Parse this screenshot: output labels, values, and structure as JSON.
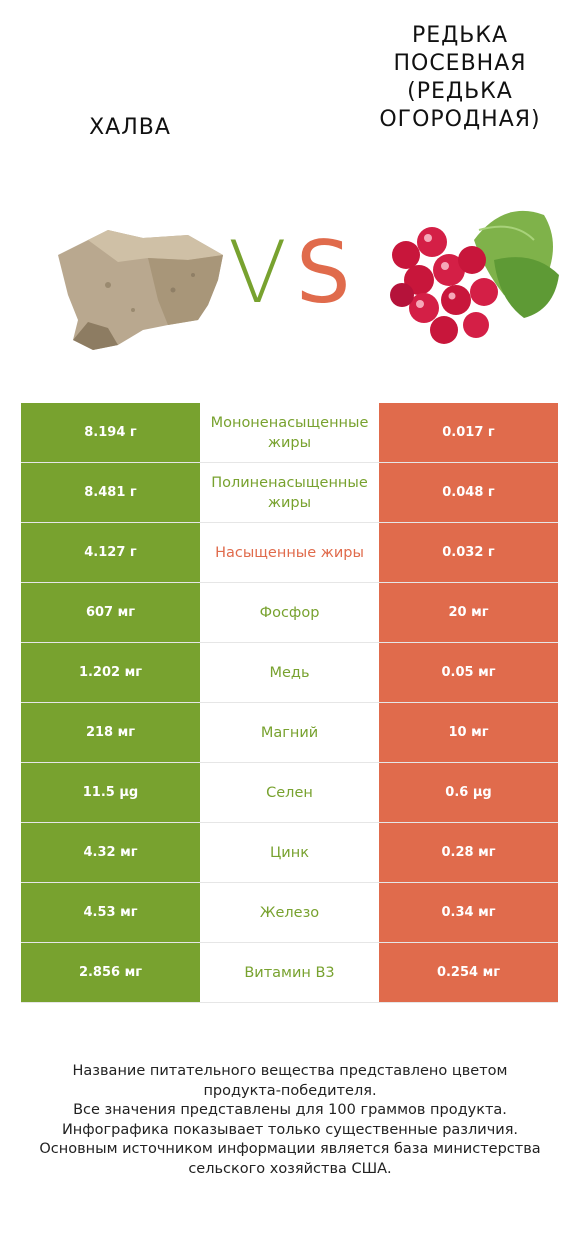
{
  "left_food": {
    "title": "Халва",
    "image_icon": "halva-image",
    "color": "#78a22f"
  },
  "right_food": {
    "title": "Редька посевная (Редька огородная)",
    "image_icon": "radish-image",
    "color": "#e06b4c"
  },
  "vs": {
    "v": "V",
    "s": "S"
  },
  "rows": [
    {
      "left": "8.194 г",
      "name": "Мононенасыщенные жиры",
      "right": "0.017 г",
      "winner": "left"
    },
    {
      "left": "8.481 г",
      "name": "Полиненасыщенные жиры",
      "right": "0.048 г",
      "winner": "left"
    },
    {
      "left": "4.127 г",
      "name": "Насыщенные жиры",
      "right": "0.032 г",
      "winner": "right"
    },
    {
      "left": "607 мг",
      "name": "Фосфор",
      "right": "20 мг",
      "winner": "left"
    },
    {
      "left": "1.202 мг",
      "name": "Медь",
      "right": "0.05 мг",
      "winner": "left"
    },
    {
      "left": "218 мг",
      "name": "Магний",
      "right": "10 мг",
      "winner": "left"
    },
    {
      "left": "11.5 µg",
      "name": "Селен",
      "right": "0.6 µg",
      "winner": "left"
    },
    {
      "left": "4.32 мг",
      "name": "Цинк",
      "right": "0.28 мг",
      "winner": "left"
    },
    {
      "left": "4.53 мг",
      "name": "Железо",
      "right": "0.34 мг",
      "winner": "left"
    },
    {
      "left": "2.856 мг",
      "name": "Витамин B3",
      "right": "0.254 мг",
      "winner": "left"
    }
  ],
  "footer": {
    "line1": "Название питательного вещества представлено цветом",
    "line2": "продукта-победителя.",
    "line3": "Все значения представлены для 100 граммов продукта.",
    "line4": "Инфографика показывает только существенные различия.",
    "line5": "Основным источником информации является база министерства",
    "line6": "сельского хозяйства США."
  }
}
